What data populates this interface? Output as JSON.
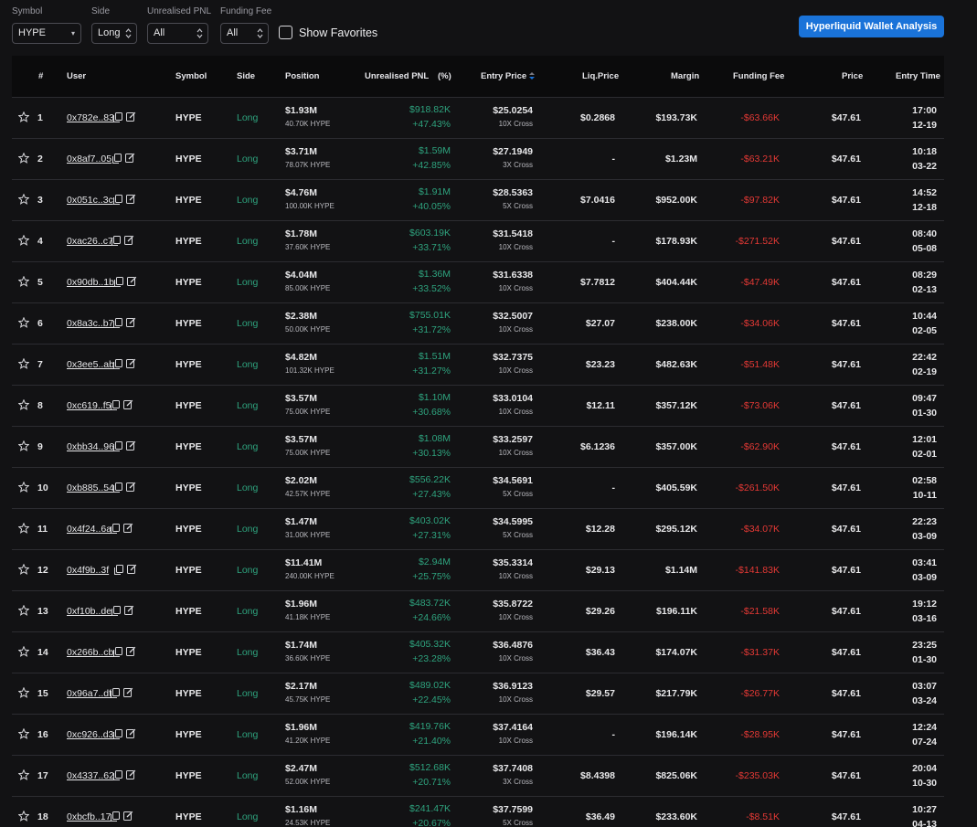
{
  "filters": {
    "symbol": {
      "label": "Symbol",
      "value": "HYPE"
    },
    "side": {
      "label": "Side",
      "value": "Long"
    },
    "pnl": {
      "label": "Unrealised PNL",
      "value": "All"
    },
    "funding": {
      "label": "Funding Fee",
      "value": "All"
    },
    "favorites": "Show Favorites",
    "wallet_button": "Hyperliquid Wallet Analysis"
  },
  "colors": {
    "positive": "#2ea37e",
    "negative": "#e53935",
    "accent": "#1a73d9",
    "sort_active": "#1a73d9"
  },
  "columns": {
    "rank": "#",
    "user": "User",
    "symbol": "Symbol",
    "side": "Side",
    "position": "Position",
    "pnl": "Unrealised PNL",
    "pct": "(%)",
    "entry": "Entry Price",
    "liq": "Liq.Price",
    "margin": "Margin",
    "funding": "Funding Fee",
    "price": "Price",
    "time": "Entry Time"
  },
  "rows": [
    {
      "rank": "1",
      "user": "0x782e..83",
      "symbol": "HYPE",
      "side": "Long",
      "position": "$1.93M",
      "size": "40.70K HYPE",
      "pnl": "$918.82K",
      "pct": "+47.43%",
      "entry": "$25.0254",
      "lev": "10X Cross",
      "liq": "$0.2868",
      "margin": "$193.73K",
      "funding": "-$63.66K",
      "price": "$47.61",
      "time": "17:00",
      "date": "12-19"
    },
    {
      "rank": "2",
      "user": "0x8af7..05",
      "symbol": "HYPE",
      "side": "Long",
      "position": "$3.71M",
      "size": "78.07K HYPE",
      "pnl": "$1.59M",
      "pct": "+42.85%",
      "entry": "$27.1949",
      "lev": "3X Cross",
      "liq": "-",
      "margin": "$1.23M",
      "funding": "-$63.21K",
      "price": "$47.61",
      "time": "10:18",
      "date": "03-22"
    },
    {
      "rank": "3",
      "user": "0x051c..3c",
      "symbol": "HYPE",
      "side": "Long",
      "position": "$4.76M",
      "size": "100.00K HYPE",
      "pnl": "$1.91M",
      "pct": "+40.05%",
      "entry": "$28.5363",
      "lev": "5X Cross",
      "liq": "$7.0416",
      "margin": "$952.00K",
      "funding": "-$97.82K",
      "price": "$47.61",
      "time": "14:52",
      "date": "12-18"
    },
    {
      "rank": "4",
      "user": "0xac26..c7",
      "symbol": "HYPE",
      "side": "Long",
      "position": "$1.78M",
      "size": "37.60K HYPE",
      "pnl": "$603.19K",
      "pct": "+33.71%",
      "entry": "$31.5418",
      "lev": "10X Cross",
      "liq": "-",
      "margin": "$178.93K",
      "funding": "-$271.52K",
      "price": "$47.61",
      "time": "08:40",
      "date": "05-08"
    },
    {
      "rank": "5",
      "user": "0x90db..1b",
      "symbol": "HYPE",
      "side": "Long",
      "position": "$4.04M",
      "size": "85.00K HYPE",
      "pnl": "$1.36M",
      "pct": "+33.52%",
      "entry": "$31.6338",
      "lev": "10X Cross",
      "liq": "$7.7812",
      "margin": "$404.44K",
      "funding": "-$47.49K",
      "price": "$47.61",
      "time": "08:29",
      "date": "02-13"
    },
    {
      "rank": "6",
      "user": "0x8a3c..b7",
      "symbol": "HYPE",
      "side": "Long",
      "position": "$2.38M",
      "size": "50.00K HYPE",
      "pnl": "$755.01K",
      "pct": "+31.72%",
      "entry": "$32.5007",
      "lev": "10X Cross",
      "liq": "$27.07",
      "margin": "$238.00K",
      "funding": "-$34.06K",
      "price": "$47.61",
      "time": "10:44",
      "date": "02-05"
    },
    {
      "rank": "7",
      "user": "0x3ee5..ab",
      "symbol": "HYPE",
      "side": "Long",
      "position": "$4.82M",
      "size": "101.32K HYPE",
      "pnl": "$1.51M",
      "pct": "+31.27%",
      "entry": "$32.7375",
      "lev": "10X Cross",
      "liq": "$23.23",
      "margin": "$482.63K",
      "funding": "-$51.48K",
      "price": "$47.61",
      "time": "22:42",
      "date": "02-19"
    },
    {
      "rank": "8",
      "user": "0xc619..f5",
      "symbol": "HYPE",
      "side": "Long",
      "position": "$3.57M",
      "size": "75.00K HYPE",
      "pnl": "$1.10M",
      "pct": "+30.68%",
      "entry": "$33.0104",
      "lev": "10X Cross",
      "liq": "$12.11",
      "margin": "$357.12K",
      "funding": "-$73.06K",
      "price": "$47.61",
      "time": "09:47",
      "date": "01-30"
    },
    {
      "rank": "9",
      "user": "0xbb34..96",
      "symbol": "HYPE",
      "side": "Long",
      "position": "$3.57M",
      "size": "75.00K HYPE",
      "pnl": "$1.08M",
      "pct": "+30.13%",
      "entry": "$33.2597",
      "lev": "10X Cross",
      "liq": "$6.1236",
      "margin": "$357.00K",
      "funding": "-$62.90K",
      "price": "$47.61",
      "time": "12:01",
      "date": "02-01"
    },
    {
      "rank": "10",
      "user": "0xb885..54",
      "symbol": "HYPE",
      "side": "Long",
      "position": "$2.02M",
      "size": "42.57K HYPE",
      "pnl": "$556.22K",
      "pct": "+27.43%",
      "entry": "$34.5691",
      "lev": "5X Cross",
      "liq": "-",
      "margin": "$405.59K",
      "funding": "-$261.50K",
      "price": "$47.61",
      "time": "02:58",
      "date": "10-11"
    },
    {
      "rank": "11",
      "user": "0x4f24..6a",
      "symbol": "HYPE",
      "side": "Long",
      "position": "$1.47M",
      "size": "31.00K HYPE",
      "pnl": "$403.02K",
      "pct": "+27.31%",
      "entry": "$34.5995",
      "lev": "5X Cross",
      "liq": "$12.28",
      "margin": "$295.12K",
      "funding": "-$34.07K",
      "price": "$47.61",
      "time": "22:23",
      "date": "03-09"
    },
    {
      "rank": "12",
      "user": "0x4f9b..3f",
      "symbol": "HYPE",
      "side": "Long",
      "position": "$11.41M",
      "size": "240.00K HYPE",
      "pnl": "$2.94M",
      "pct": "+25.75%",
      "entry": "$35.3314",
      "lev": "10X Cross",
      "liq": "$29.13",
      "margin": "$1.14M",
      "funding": "-$141.83K",
      "price": "$47.61",
      "time": "03:41",
      "date": "03-09"
    },
    {
      "rank": "13",
      "user": "0xf10b..de",
      "symbol": "HYPE",
      "side": "Long",
      "position": "$1.96M",
      "size": "41.18K HYPE",
      "pnl": "$483.72K",
      "pct": "+24.66%",
      "entry": "$35.8722",
      "lev": "10X Cross",
      "liq": "$29.26",
      "margin": "$196.11K",
      "funding": "-$21.58K",
      "price": "$47.61",
      "time": "19:12",
      "date": "03-16"
    },
    {
      "rank": "14",
      "user": "0x266b..cb",
      "symbol": "HYPE",
      "side": "Long",
      "position": "$1.74M",
      "size": "36.60K HYPE",
      "pnl": "$405.32K",
      "pct": "+23.28%",
      "entry": "$36.4876",
      "lev": "10X Cross",
      "liq": "$36.43",
      "margin": "$174.07K",
      "funding": "-$31.37K",
      "price": "$47.61",
      "time": "23:25",
      "date": "01-30"
    },
    {
      "rank": "15",
      "user": "0x96a7..df",
      "symbol": "HYPE",
      "side": "Long",
      "position": "$2.17M",
      "size": "45.75K HYPE",
      "pnl": "$489.02K",
      "pct": "+22.45%",
      "entry": "$36.9123",
      "lev": "10X Cross",
      "liq": "$29.57",
      "margin": "$217.79K",
      "funding": "-$26.77K",
      "price": "$47.61",
      "time": "03:07",
      "date": "03-24"
    },
    {
      "rank": "16",
      "user": "0xc926..d3",
      "symbol": "HYPE",
      "side": "Long",
      "position": "$1.96M",
      "size": "41.20K HYPE",
      "pnl": "$419.76K",
      "pct": "+21.40%",
      "entry": "$37.4164",
      "lev": "10X Cross",
      "liq": "-",
      "margin": "$196.14K",
      "funding": "-$28.95K",
      "price": "$47.61",
      "time": "12:24",
      "date": "07-24"
    },
    {
      "rank": "17",
      "user": "0x4337..62",
      "symbol": "HYPE",
      "side": "Long",
      "position": "$2.47M",
      "size": "52.00K HYPE",
      "pnl": "$512.68K",
      "pct": "+20.71%",
      "entry": "$37.7408",
      "lev": "3X Cross",
      "liq": "$8.4398",
      "margin": "$825.06K",
      "funding": "-$235.03K",
      "price": "$47.61",
      "time": "20:04",
      "date": "10-30"
    },
    {
      "rank": "18",
      "user": "0xbcfb..17",
      "symbol": "HYPE",
      "side": "Long",
      "position": "$1.16M",
      "size": "24.53K HYPE",
      "pnl": "$241.47K",
      "pct": "+20.67%",
      "entry": "$37.7599",
      "lev": "5X Cross",
      "liq": "$36.49",
      "margin": "$233.60K",
      "funding": "-$8.51K",
      "price": "$47.61",
      "time": "10:27",
      "date": "04-13"
    }
  ]
}
